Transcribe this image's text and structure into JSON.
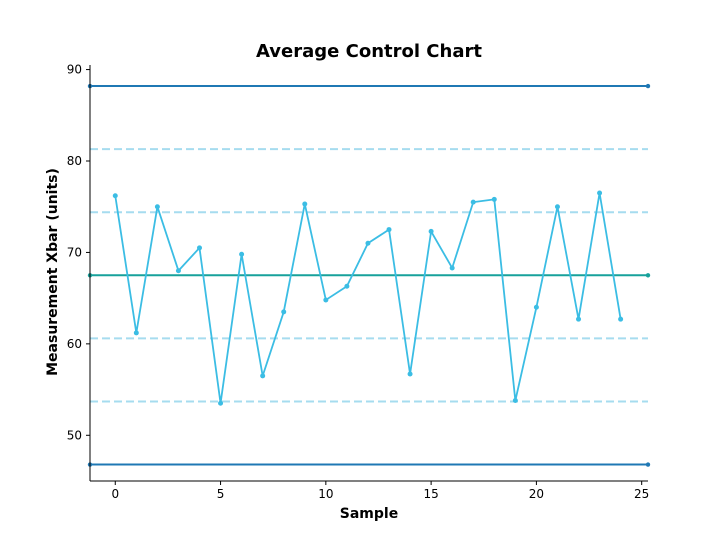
{
  "chart_data": {
    "type": "line",
    "title": "Average Control Chart",
    "xlabel": "Sample",
    "ylabel": "Measurement Xbar (units)",
    "xlim": [
      -1.2,
      25.3
    ],
    "ylim": [
      45,
      90.5
    ],
    "xticks": [
      0,
      5,
      10,
      15,
      20,
      25
    ],
    "yticks": [
      50,
      60,
      70,
      80,
      90
    ],
    "grid": false,
    "legend": "none",
    "series": [
      {
        "color": "#3bbde4",
        "x": [
          0,
          1,
          2,
          3,
          4,
          5,
          6,
          7,
          8,
          9,
          10,
          11,
          12,
          13,
          14,
          15,
          16,
          17,
          18,
          19,
          20,
          21,
          22,
          23,
          24
        ],
        "y": [
          76.2,
          61.2,
          75.0,
          68.0,
          70.5,
          53.5,
          69.8,
          56.5,
          63.5,
          75.3,
          64.8,
          66.3,
          71.0,
          72.5,
          56.7,
          72.3,
          68.3,
          75.5,
          75.8,
          53.8,
          64.0,
          75.0,
          62.7,
          76.5,
          62.7
        ]
      }
    ],
    "reference_lines": [
      {
        "role": "upper-control-limit",
        "y": 88.2,
        "style": "solid",
        "color": "#1f78b4"
      },
      {
        "role": "upper-two-sigma",
        "y": 81.3,
        "style": "dashed",
        "color": "#a6dcef"
      },
      {
        "role": "upper-one-sigma",
        "y": 74.4,
        "style": "dashed",
        "color": "#a6dcef"
      },
      {
        "role": "center-line",
        "y": 67.5,
        "style": "solid",
        "color": "#17a19b"
      },
      {
        "role": "lower-one-sigma",
        "y": 60.6,
        "style": "dashed",
        "color": "#a6dcef"
      },
      {
        "role": "lower-two-sigma",
        "y": 53.7,
        "style": "dashed",
        "color": "#a6dcef"
      },
      {
        "role": "lower-control-limit",
        "y": 46.8,
        "style": "solid",
        "color": "#1f78b4"
      }
    ]
  }
}
